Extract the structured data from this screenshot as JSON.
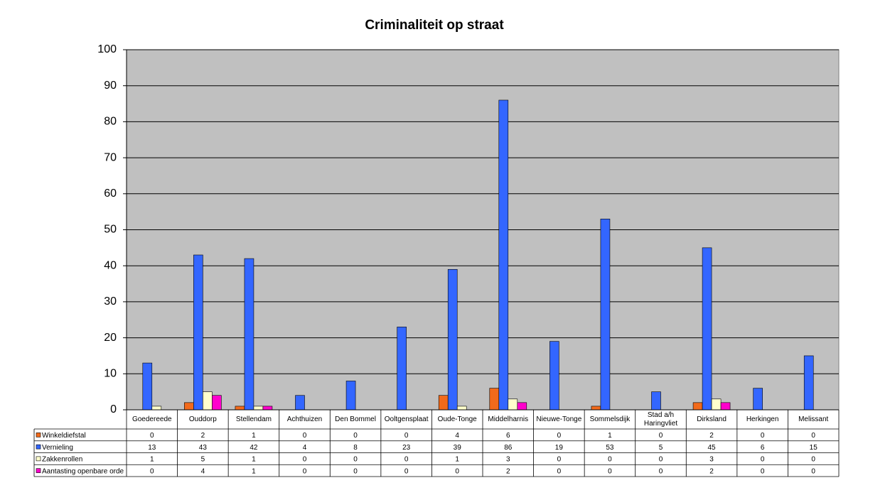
{
  "chart_data": {
    "type": "bar",
    "title": "Criminaliteit op straat",
    "categories": [
      "Goedereede",
      "Ouddorp",
      "Stellendam",
      "Achthuizen",
      "Den Bommel",
      "Ooltgensplaat",
      "Oude-Tonge",
      "Middelharnis",
      "Nieuwe-Tonge",
      "Sommelsdijk",
      "Stad a/h Haringvliet",
      "Dirksland",
      "Herkingen",
      "Melissant"
    ],
    "series": [
      {
        "name": "Winkeldiefstal",
        "color": "#f26a1b",
        "values": [
          0,
          2,
          1,
          0,
          0,
          0,
          4,
          6,
          0,
          1,
          0,
          2,
          0,
          0
        ]
      },
      {
        "name": "Vernieling",
        "color": "#3366ff",
        "values": [
          13,
          43,
          42,
          4,
          8,
          23,
          39,
          86,
          19,
          53,
          5,
          45,
          6,
          15
        ]
      },
      {
        "name": "Zakkenrollen",
        "color": "#ffffcc",
        "values": [
          1,
          5,
          1,
          0,
          0,
          0,
          1,
          3,
          0,
          0,
          0,
          3,
          0,
          0
        ]
      },
      {
        "name": "Aantasting openbare orde",
        "color": "#ff00cc",
        "values": [
          0,
          4,
          1,
          0,
          0,
          0,
          0,
          2,
          0,
          0,
          0,
          2,
          0,
          0
        ]
      }
    ],
    "ylim": [
      0,
      100
    ],
    "yticks": [
      0,
      10,
      20,
      30,
      40,
      50,
      60,
      70,
      80,
      90,
      100
    ],
    "grid": true,
    "background": "#c0c0c0"
  }
}
